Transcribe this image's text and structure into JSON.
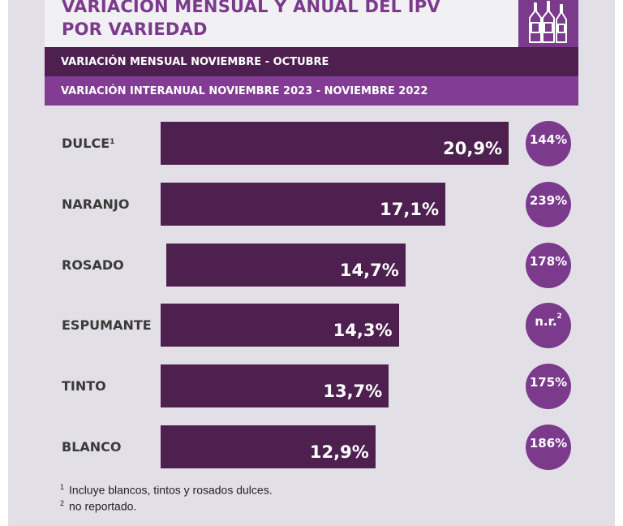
{
  "header": {
    "title": "VARIACIÓN MENSUAL Y ANUAL DEL IPV\nPOR VARIEDAD",
    "icon": "wine-bottles-icon"
  },
  "legend_bands": {
    "monthly": "VARIACIÓN MENSUAL NOVIEMBRE - OCTUBRE",
    "annual": "VARIACIÓN INTERANUAL NOVIEMBRE 2023 - NOVIEMBRE 2022"
  },
  "chart_data": {
    "type": "bar",
    "orientation": "horizontal",
    "categories": [
      "DULCE",
      "NARANJO",
      "ROSADO",
      "ESPUMANTE",
      "TINTO",
      "BLANCO"
    ],
    "category_footnotes": [
      "1",
      "",
      "",
      "",
      "",
      ""
    ],
    "series": [
      {
        "name": "VARIACIÓN MENSUAL NOVIEMBRE - OCTUBRE",
        "values": [
          20.9,
          17.1,
          14.7,
          14.3,
          13.7,
          12.9
        ],
        "labels": [
          "20,9%",
          "17,1%",
          "14,7%",
          "14,3%",
          "13,7%",
          "12,9%"
        ],
        "color": "#4e2050"
      },
      {
        "name": "VARIACIÓN INTERANUAL NOVIEMBRE 2023 - NOVIEMBRE 2022",
        "values": [
          144,
          239,
          178,
          null,
          175,
          186
        ],
        "labels": [
          "144%",
          "239%",
          "178%",
          "n.r.",
          "175%",
          "186%"
        ],
        "label_footnotes": [
          "",
          "",
          "",
          "2",
          "",
          ""
        ],
        "color": "#7b3a8c"
      }
    ]
  },
  "footnotes": [
    {
      "mark": "1",
      "text": "Incluye blancos, tintos y rosados dulces."
    },
    {
      "mark": "2",
      "text": "no reportado."
    }
  ],
  "colors": {
    "background": "#e2dfe6",
    "dark_purple": "#4e2050",
    "purple": "#7b3a8c",
    "band_purple": "#823c93",
    "title": "#7b3a8c"
  }
}
